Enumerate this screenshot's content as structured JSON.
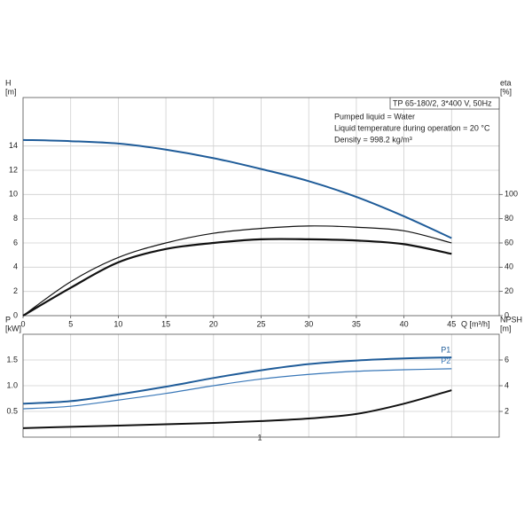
{
  "chart_data": [
    {
      "type": "line",
      "title": "TP 65-180/2, 3*400 V, 50Hz",
      "annotations": [
        "Pumped liquid = Water",
        "Liquid temperature during operation = 20 °C",
        "Density = 998.2 kg/m³"
      ],
      "xlabel": "Q [m³/h]",
      "ylabel": [
        "H",
        "[m]"
      ],
      "y2label": [
        "eta",
        "[%]"
      ],
      "x": [
        0,
        5,
        10,
        15,
        20,
        25,
        30,
        35,
        40,
        45
      ],
      "xlim": [
        0,
        50
      ],
      "xticks": [
        0,
        5,
        10,
        15,
        20,
        25,
        30,
        35,
        40,
        45
      ],
      "ylim": [
        0,
        18
      ],
      "yticks": [
        0,
        2,
        4,
        6,
        8,
        10,
        12,
        14
      ],
      "y2lim": [
        0,
        180
      ],
      "y2ticks": [
        0,
        20,
        40,
        60,
        80,
        100
      ],
      "grid": true,
      "series": [
        {
          "color": "#1f5c99",
          "axis": "y",
          "values": [
            14.5,
            14.4,
            14.2,
            13.7,
            13.0,
            12.1,
            11.1,
            9.8,
            8.2,
            6.4
          ]
        },
        {
          "color": "#111111",
          "axis": "y2",
          "values": [
            0,
            28,
            48,
            60,
            68,
            72,
            74,
            73,
            70,
            60
          ]
        },
        {
          "color": "#111111",
          "axis": "y2",
          "values": [
            0,
            23,
            44,
            55,
            60,
            63,
            63,
            62,
            59,
            51
          ]
        }
      ]
    },
    {
      "type": "line",
      "ylabel": [
        "P",
        "[kW]"
      ],
      "y2label": [
        "NPSH",
        "[m]"
      ],
      "annotations": [
        "1"
      ],
      "x": [
        0,
        5,
        10,
        15,
        20,
        25,
        30,
        35,
        40,
        45
      ],
      "xlim": [
        0,
        50
      ],
      "ylim": [
        0,
        2
      ],
      "yticks": [
        0.5,
        {
          "value": 1,
          "label": "1.0"
        },
        1.5
      ],
      "y2lim": [
        0,
        8
      ],
      "y2ticks": [
        2,
        4,
        6
      ],
      "grid": true,
      "series": [
        {
          "name": "P1",
          "color": "#1f5c99",
          "axis": "y",
          "values": [
            0.65,
            0.7,
            0.83,
            0.98,
            1.15,
            1.3,
            1.42,
            1.49,
            1.53,
            1.55
          ]
        },
        {
          "name": "P2",
          "color": "#3a78b8",
          "axis": "y",
          "values": [
            0.55,
            0.6,
            0.72,
            0.85,
            1.0,
            1.13,
            1.22,
            1.28,
            1.31,
            1.33
          ]
        },
        {
          "color": "#111111",
          "axis": "y2",
          "values": [
            0.7,
            0.8,
            0.9,
            1.0,
            1.1,
            1.25,
            1.45,
            1.8,
            2.6,
            3.65
          ]
        }
      ]
    }
  ]
}
